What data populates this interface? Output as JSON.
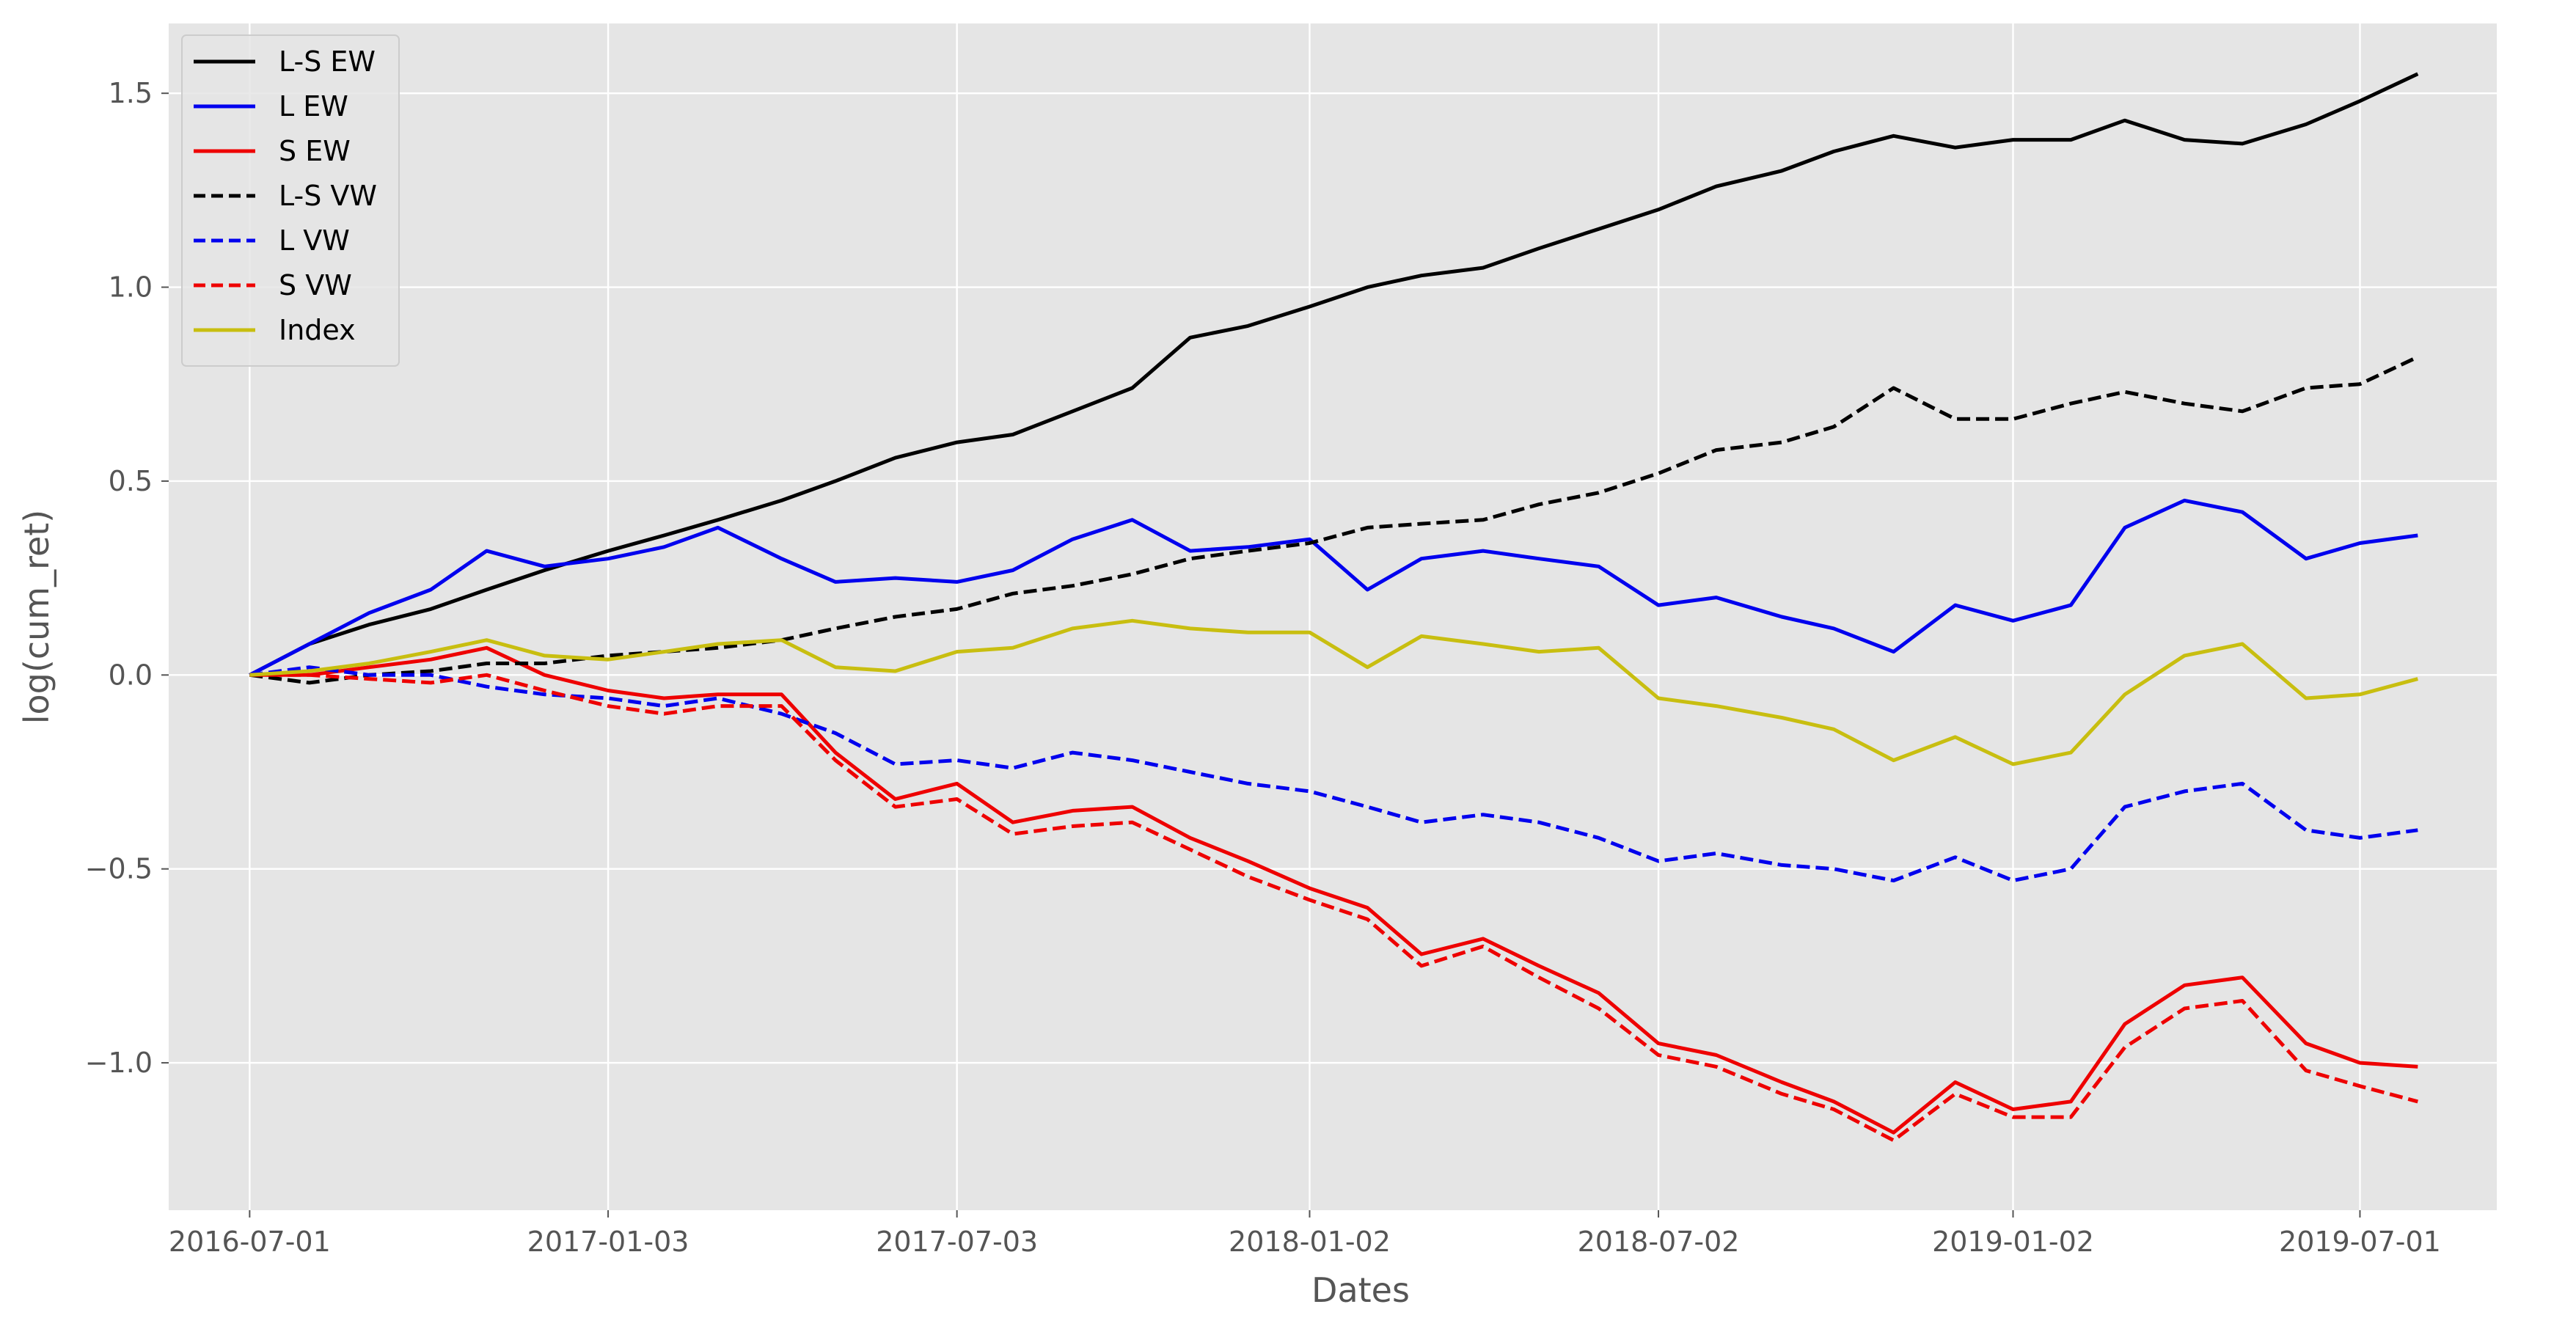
{
  "chart_data": {
    "type": "line",
    "title": "",
    "xlabel": "Dates",
    "ylabel": "log(cum_ret)",
    "x_ticks": [
      "2016-07-01",
      "2017-01-03",
      "2017-07-03",
      "2018-01-02",
      "2018-07-02",
      "2019-01-02",
      "2019-07-01"
    ],
    "y_ticks": [
      -1.0,
      -0.5,
      0.0,
      0.5,
      1.0,
      1.5
    ],
    "y_tick_labels": [
      "−1.0",
      "−0.5",
      "0.0",
      "0.5",
      "1.0",
      "1.5"
    ],
    "xlim": [
      "2016-05-20",
      "2019-09-10"
    ],
    "ylim": [
      -1.38,
      1.68
    ],
    "grid": true,
    "legend_position": "top-left",
    "style": "ggplot",
    "series": [
      {
        "name": "L-S EW",
        "color": "#000000",
        "dash": "solid",
        "x": [
          "2016-07-01",
          "2016-08-01",
          "2016-09-01",
          "2016-10-03",
          "2016-11-01",
          "2016-12-01",
          "2017-01-03",
          "2017-02-01",
          "2017-03-01",
          "2017-04-03",
          "2017-05-01",
          "2017-06-01",
          "2017-07-03",
          "2017-08-01",
          "2017-09-01",
          "2017-10-02",
          "2017-11-01",
          "2017-12-01",
          "2018-01-02",
          "2018-02-01",
          "2018-03-01",
          "2018-04-02",
          "2018-05-01",
          "2018-06-01",
          "2018-07-02",
          "2018-08-01",
          "2018-09-04",
          "2018-10-01",
          "2018-11-01",
          "2018-12-03",
          "2019-01-02",
          "2019-02-01",
          "2019-03-01",
          "2019-04-01",
          "2019-05-01",
          "2019-06-03",
          "2019-07-01",
          "2019-07-31"
        ],
        "y": [
          0.0,
          0.08,
          0.13,
          0.17,
          0.22,
          0.27,
          0.32,
          0.36,
          0.4,
          0.45,
          0.5,
          0.56,
          0.6,
          0.62,
          0.68,
          0.74,
          0.87,
          0.9,
          0.95,
          1.0,
          1.03,
          1.05,
          1.1,
          1.15,
          1.2,
          1.26,
          1.3,
          1.35,
          1.39,
          1.36,
          1.38,
          1.38,
          1.43,
          1.38,
          1.37,
          1.42,
          1.48,
          1.55
        ]
      },
      {
        "name": "L EW",
        "color": "#0000ee",
        "dash": "solid",
        "x": [
          "2016-07-01",
          "2016-08-01",
          "2016-09-01",
          "2016-10-03",
          "2016-11-01",
          "2016-12-01",
          "2017-01-03",
          "2017-02-01",
          "2017-03-01",
          "2017-04-03",
          "2017-05-01",
          "2017-06-01",
          "2017-07-03",
          "2017-08-01",
          "2017-09-01",
          "2017-10-02",
          "2017-11-01",
          "2017-12-01",
          "2018-01-02",
          "2018-02-01",
          "2018-03-01",
          "2018-04-02",
          "2018-05-01",
          "2018-06-01",
          "2018-07-02",
          "2018-08-01",
          "2018-09-04",
          "2018-10-01",
          "2018-11-01",
          "2018-12-03",
          "2019-01-02",
          "2019-02-01",
          "2019-03-01",
          "2019-04-01",
          "2019-05-01",
          "2019-06-03",
          "2019-07-01",
          "2019-07-31"
        ],
        "y": [
          0.0,
          0.08,
          0.16,
          0.22,
          0.32,
          0.28,
          0.3,
          0.33,
          0.38,
          0.3,
          0.24,
          0.25,
          0.24,
          0.27,
          0.35,
          0.4,
          0.32,
          0.33,
          0.35,
          0.22,
          0.3,
          0.32,
          0.3,
          0.28,
          0.18,
          0.2,
          0.15,
          0.12,
          0.06,
          0.18,
          0.14,
          0.18,
          0.38,
          0.45,
          0.42,
          0.3,
          0.34,
          0.36
        ]
      },
      {
        "name": "S EW",
        "color": "#ee0000",
        "dash": "solid",
        "x": [
          "2016-07-01",
          "2016-08-01",
          "2016-09-01",
          "2016-10-03",
          "2016-11-01",
          "2016-12-01",
          "2017-01-03",
          "2017-02-01",
          "2017-03-01",
          "2017-04-03",
          "2017-05-01",
          "2017-06-01",
          "2017-07-03",
          "2017-08-01",
          "2017-09-01",
          "2017-10-02",
          "2017-11-01",
          "2017-12-01",
          "2018-01-02",
          "2018-02-01",
          "2018-03-01",
          "2018-04-02",
          "2018-05-01",
          "2018-06-01",
          "2018-07-02",
          "2018-08-01",
          "2018-09-04",
          "2018-10-01",
          "2018-11-01",
          "2018-12-03",
          "2019-01-02",
          "2019-02-01",
          "2019-03-01",
          "2019-04-01",
          "2019-05-01",
          "2019-06-03",
          "2019-07-01",
          "2019-07-31"
        ],
        "y": [
          0.0,
          0.0,
          0.02,
          0.04,
          0.07,
          0.0,
          -0.04,
          -0.06,
          -0.05,
          -0.05,
          -0.2,
          -0.32,
          -0.28,
          -0.38,
          -0.35,
          -0.34,
          -0.42,
          -0.48,
          -0.55,
          -0.6,
          -0.72,
          -0.68,
          -0.75,
          -0.82,
          -0.95,
          -0.98,
          -1.05,
          -1.1,
          -1.18,
          -1.05,
          -1.12,
          -1.1,
          -0.9,
          -0.8,
          -0.78,
          -0.95,
          -1.0,
          -1.01
        ]
      },
      {
        "name": "L-S VW",
        "color": "#000000",
        "dash": "dashed",
        "x": [
          "2016-07-01",
          "2016-08-01",
          "2016-09-01",
          "2016-10-03",
          "2016-11-01",
          "2016-12-01",
          "2017-01-03",
          "2017-02-01",
          "2017-03-01",
          "2017-04-03",
          "2017-05-01",
          "2017-06-01",
          "2017-07-03",
          "2017-08-01",
          "2017-09-01",
          "2017-10-02",
          "2017-11-01",
          "2017-12-01",
          "2018-01-02",
          "2018-02-01",
          "2018-03-01",
          "2018-04-02",
          "2018-05-01",
          "2018-06-01",
          "2018-07-02",
          "2018-08-01",
          "2018-09-04",
          "2018-10-01",
          "2018-11-01",
          "2018-12-03",
          "2019-01-02",
          "2019-02-01",
          "2019-03-01",
          "2019-04-01",
          "2019-05-01",
          "2019-06-03",
          "2019-07-01",
          "2019-07-31"
        ],
        "y": [
          0.0,
          -0.02,
          0.0,
          0.01,
          0.03,
          0.03,
          0.05,
          0.06,
          0.07,
          0.09,
          0.12,
          0.15,
          0.17,
          0.21,
          0.23,
          0.26,
          0.3,
          0.32,
          0.34,
          0.38,
          0.39,
          0.4,
          0.44,
          0.47,
          0.52,
          0.58,
          0.6,
          0.64,
          0.74,
          0.66,
          0.66,
          0.7,
          0.73,
          0.7,
          0.68,
          0.74,
          0.75,
          0.82
        ]
      },
      {
        "name": "L VW",
        "color": "#0000ee",
        "dash": "dashed",
        "x": [
          "2016-07-01",
          "2016-08-01",
          "2016-09-01",
          "2016-10-03",
          "2016-11-01",
          "2016-12-01",
          "2017-01-03",
          "2017-02-01",
          "2017-03-01",
          "2017-04-03",
          "2017-05-01",
          "2017-06-01",
          "2017-07-03",
          "2017-08-01",
          "2017-09-01",
          "2017-10-02",
          "2017-11-01",
          "2017-12-01",
          "2018-01-02",
          "2018-02-01",
          "2018-03-01",
          "2018-04-02",
          "2018-05-01",
          "2018-06-01",
          "2018-07-02",
          "2018-08-01",
          "2018-09-04",
          "2018-10-01",
          "2018-11-01",
          "2018-12-03",
          "2019-01-02",
          "2019-02-01",
          "2019-03-01",
          "2019-04-01",
          "2019-05-01",
          "2019-06-03",
          "2019-07-01",
          "2019-07-31"
        ],
        "y": [
          0.0,
          0.02,
          0.0,
          0.0,
          -0.03,
          -0.05,
          -0.06,
          -0.08,
          -0.06,
          -0.1,
          -0.15,
          -0.23,
          -0.22,
          -0.24,
          -0.2,
          -0.22,
          -0.25,
          -0.28,
          -0.3,
          -0.34,
          -0.38,
          -0.36,
          -0.38,
          -0.42,
          -0.48,
          -0.46,
          -0.49,
          -0.5,
          -0.53,
          -0.47,
          -0.53,
          -0.5,
          -0.34,
          -0.3,
          -0.28,
          -0.4,
          -0.42,
          -0.4
        ]
      },
      {
        "name": "S VW",
        "color": "#ee0000",
        "dash": "dashed",
        "x": [
          "2016-07-01",
          "2016-08-01",
          "2016-09-01",
          "2016-10-03",
          "2016-11-01",
          "2016-12-01",
          "2017-01-03",
          "2017-02-01",
          "2017-03-01",
          "2017-04-03",
          "2017-05-01",
          "2017-06-01",
          "2017-07-03",
          "2017-08-01",
          "2017-09-01",
          "2017-10-02",
          "2017-11-01",
          "2017-12-01",
          "2018-01-02",
          "2018-02-01",
          "2018-03-01",
          "2018-04-02",
          "2018-05-01",
          "2018-06-01",
          "2018-07-02",
          "2018-08-01",
          "2018-09-04",
          "2018-10-01",
          "2018-11-01",
          "2018-12-03",
          "2019-01-02",
          "2019-02-01",
          "2019-03-01",
          "2019-04-01",
          "2019-05-01",
          "2019-06-03",
          "2019-07-01",
          "2019-07-31"
        ],
        "y": [
          0.0,
          0.0,
          -0.01,
          -0.02,
          0.0,
          -0.04,
          -0.08,
          -0.1,
          -0.08,
          -0.08,
          -0.22,
          -0.34,
          -0.32,
          -0.41,
          -0.39,
          -0.38,
          -0.45,
          -0.52,
          -0.58,
          -0.63,
          -0.75,
          -0.7,
          -0.78,
          -0.86,
          -0.98,
          -1.01,
          -1.08,
          -1.12,
          -1.2,
          -1.08,
          -1.14,
          -1.14,
          -0.96,
          -0.86,
          -0.84,
          -1.02,
          -1.06,
          -1.1
        ]
      },
      {
        "name": "Index",
        "color": "#c8be10",
        "dash": "solid",
        "x": [
          "2016-07-01",
          "2016-08-01",
          "2016-09-01",
          "2016-10-03",
          "2016-11-01",
          "2016-12-01",
          "2017-01-03",
          "2017-02-01",
          "2017-03-01",
          "2017-04-03",
          "2017-05-01",
          "2017-06-01",
          "2017-07-03",
          "2017-08-01",
          "2017-09-01",
          "2017-10-02",
          "2017-11-01",
          "2017-12-01",
          "2018-01-02",
          "2018-02-01",
          "2018-03-01",
          "2018-04-02",
          "2018-05-01",
          "2018-06-01",
          "2018-07-02",
          "2018-08-01",
          "2018-09-04",
          "2018-10-01",
          "2018-11-01",
          "2018-12-03",
          "2019-01-02",
          "2019-02-01",
          "2019-03-01",
          "2019-04-01",
          "2019-05-01",
          "2019-06-03",
          "2019-07-01",
          "2019-07-31"
        ],
        "y": [
          0.0,
          0.01,
          0.03,
          0.06,
          0.09,
          0.05,
          0.04,
          0.06,
          0.08,
          0.09,
          0.02,
          0.01,
          0.06,
          0.07,
          0.12,
          0.14,
          0.12,
          0.11,
          0.11,
          0.02,
          0.1,
          0.08,
          0.06,
          0.07,
          -0.06,
          -0.08,
          -0.11,
          -0.14,
          -0.22,
          -0.16,
          -0.23,
          -0.2,
          -0.05,
          0.05,
          0.08,
          -0.06,
          -0.05,
          -0.01
        ]
      }
    ]
  }
}
